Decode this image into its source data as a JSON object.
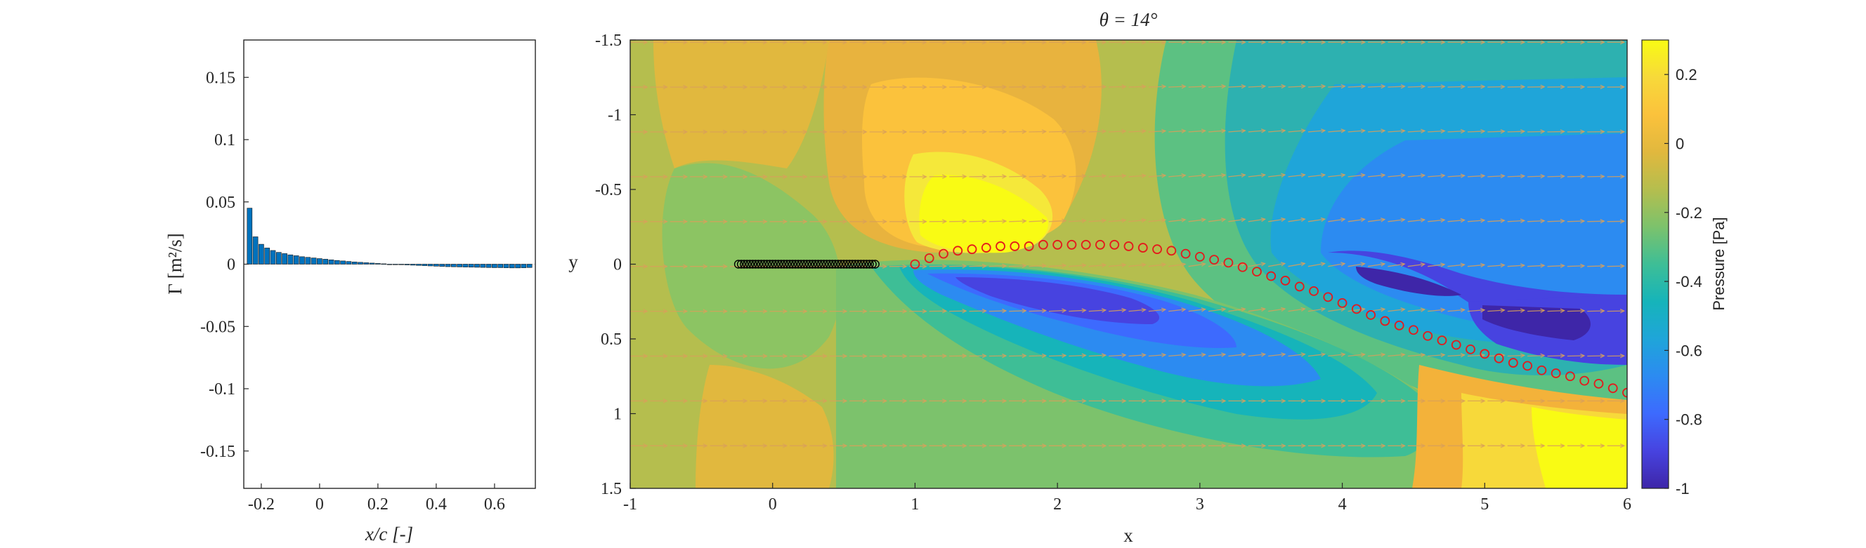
{
  "chart_data": [
    {
      "type": "bar",
      "ylabel": "Γ [m²/s]",
      "xlabel": "x/c [-]",
      "xlim": [
        -0.26,
        0.74
      ],
      "ylim": [
        -0.18,
        0.18
      ],
      "xticks": [
        "-0.2",
        "0",
        "0.2",
        "0.4",
        "0.6"
      ],
      "yticks": [
        "-0.15",
        "-0.1",
        "-0.05",
        "0",
        "0.05",
        "0.1",
        "0.15"
      ],
      "bar_color": "#0072BD",
      "x": [
        -0.24,
        -0.22,
        -0.2,
        -0.18,
        -0.16,
        -0.14,
        -0.12,
        -0.1,
        -0.08,
        -0.06,
        -0.04,
        -0.02,
        0.0,
        0.02,
        0.04,
        0.06,
        0.08,
        0.1,
        0.12,
        0.14,
        0.16,
        0.18,
        0.2,
        0.22,
        0.24,
        0.26,
        0.28,
        0.3,
        0.32,
        0.34,
        0.36,
        0.38,
        0.4,
        0.42,
        0.44,
        0.46,
        0.48,
        0.5,
        0.52,
        0.54,
        0.56,
        0.58,
        0.6,
        0.62,
        0.64,
        0.66,
        0.68,
        0.7,
        0.72
      ],
      "values": [
        0.045,
        0.022,
        0.016,
        0.013,
        0.011,
        0.0095,
        0.0085,
        0.0075,
        0.0068,
        0.006,
        0.0055,
        0.005,
        0.0045,
        0.004,
        0.0035,
        0.003,
        0.0026,
        0.0022,
        0.0018,
        0.0015,
        0.0012,
        0.0009,
        0.0006,
        0.0003,
        0.0,
        -0.0002,
        -0.0004,
        -0.0006,
        -0.0008,
        -0.001,
        -0.0012,
        -0.0014,
        -0.0016,
        -0.0018,
        -0.002,
        -0.0021,
        -0.0022,
        -0.0023,
        -0.0024,
        -0.0025,
        -0.0026,
        -0.0027,
        -0.0028,
        -0.0028,
        -0.0029,
        -0.003,
        -0.003,
        -0.0029,
        -0.0027
      ]
    },
    {
      "type": "heatmap",
      "title": "θ = 14°",
      "xlabel": "x",
      "ylabel": "y",
      "xlim": [
        -1,
        6
      ],
      "ylim": [
        -1.5,
        1.5
      ],
      "y_reversed": true,
      "xticks": [
        "-1",
        "0",
        "1",
        "2",
        "3",
        "4",
        "5",
        "6"
      ],
      "yticks": [
        "-1.5",
        "-1",
        "-0.5",
        "0",
        "0.5",
        "1",
        "1.5"
      ],
      "colorbar": {
        "label": "Pressure [Pa]",
        "range": [
          -1,
          0.3
        ],
        "ticks": [
          "0.2",
          "0",
          "-0.2",
          "-0.4",
          "-0.6",
          "-0.8",
          "-1"
        ],
        "colors": [
          "#3E26A8",
          "#4743E0",
          "#3D6AFE",
          "#2C8BF1",
          "#1FA5D9",
          "#16B4BA",
          "#3EBE96",
          "#7CC26C",
          "#B5BE4E",
          "#E1B83E",
          "#FBC23C",
          "#F7D93A",
          "#F9FB14"
        ]
      },
      "black_markers": {
        "x": [
          -0.24,
          -0.22,
          -0.2,
          -0.18,
          -0.16,
          -0.14,
          -0.12,
          -0.1,
          -0.08,
          -0.06,
          -0.04,
          -0.02,
          0.0,
          0.02,
          0.04,
          0.06,
          0.08,
          0.1,
          0.12,
          0.14,
          0.16,
          0.18,
          0.2,
          0.22,
          0.24,
          0.26,
          0.28,
          0.3,
          0.32,
          0.34,
          0.36,
          0.38,
          0.4,
          0.42,
          0.44,
          0.46,
          0.48,
          0.5,
          0.52,
          0.54,
          0.56,
          0.58,
          0.6,
          0.62,
          0.64,
          0.66,
          0.68,
          0.7,
          0.72
        ],
        "y": 0.0,
        "color": "#000000"
      },
      "red_markers": {
        "x": [
          1.0,
          1.1,
          1.2,
          1.3,
          1.4,
          1.5,
          1.6,
          1.7,
          1.8,
          1.9,
          2.0,
          2.1,
          2.2,
          2.3,
          2.4,
          2.5,
          2.6,
          2.7,
          2.8,
          2.9,
          3.0,
          3.1,
          3.2,
          3.3,
          3.4,
          3.5,
          3.6,
          3.7,
          3.8,
          3.9,
          4.0,
          4.1,
          4.2,
          4.3,
          4.4,
          4.5,
          4.6,
          4.7,
          4.8,
          4.9,
          5.0,
          5.1,
          5.2,
          5.3,
          5.4,
          5.5,
          5.6,
          5.7,
          5.8,
          5.9,
          6.0
        ],
        "y": [
          0.0,
          -0.04,
          -0.07,
          -0.09,
          -0.1,
          -0.11,
          -0.12,
          -0.12,
          -0.12,
          -0.13,
          -0.13,
          -0.13,
          -0.13,
          -0.13,
          -0.13,
          -0.12,
          -0.11,
          -0.1,
          -0.09,
          -0.07,
          -0.05,
          -0.03,
          -0.01,
          0.02,
          0.05,
          0.08,
          0.11,
          0.15,
          0.18,
          0.22,
          0.26,
          0.3,
          0.34,
          0.38,
          0.41,
          0.44,
          0.48,
          0.51,
          0.54,
          0.57,
          0.6,
          0.63,
          0.66,
          0.68,
          0.71,
          0.73,
          0.75,
          0.78,
          0.8,
          0.83,
          0.86
        ],
        "color": "#E41A1C"
      },
      "arrow_color": "#D9A05A"
    }
  ]
}
